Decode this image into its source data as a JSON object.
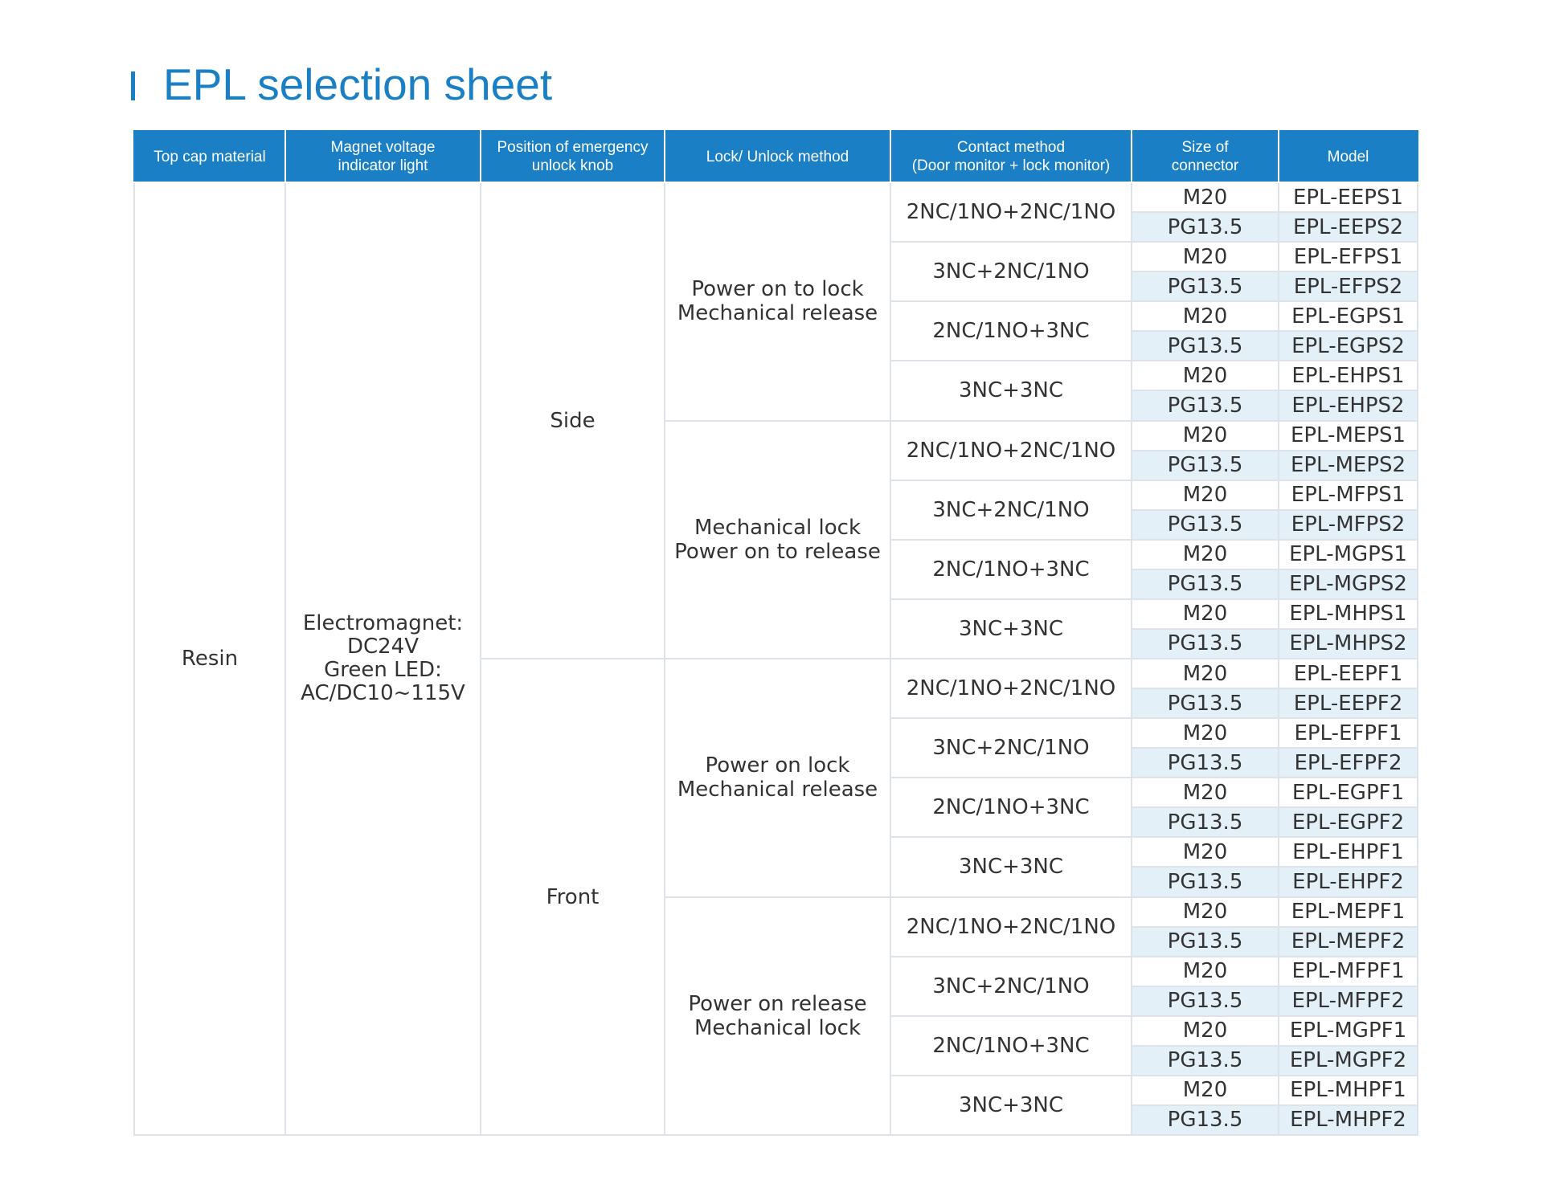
{
  "title": "EPL selection sheet",
  "colors": {
    "accent": "#1a7fc4",
    "alt_row": "#e4f0f8",
    "grid": "#dde3e8"
  },
  "headers": {
    "top_cap": "Top cap material",
    "magnet_voltage": [
      "Magnet voltage",
      "indicator light"
    ],
    "knob_position": [
      "Position of emergency",
      "unlock knob"
    ],
    "lock_method": "Lock/ Unlock method",
    "contact_method": [
      "Contact method",
      "(Door monitor + lock monitor)"
    ],
    "connector_size": [
      "Size of",
      "connector"
    ],
    "model": "Model"
  },
  "top_cap_material": "Resin",
  "magnet_voltage": [
    "Electromagnet:",
    "DC24V",
    "Green LED:",
    "AC/DC10~115V"
  ],
  "knob_positions": [
    "Side",
    "Front"
  ],
  "lock_methods": [
    [
      "Power on to lock",
      "Mechanical release"
    ],
    [
      "Mechanical lock",
      "Power on to release"
    ],
    [
      "Power on lock",
      "Mechanical release"
    ],
    [
      "Power on release",
      "Mechanical lock"
    ]
  ],
  "contact_methods": [
    "2NC/1NO+2NC/1NO",
    "3NC+2NC/1NO",
    "2NC/1NO+3NC",
    "3NC+3NC",
    "2NC/1NO+2NC/1NO",
    "3NC+2NC/1NO",
    "2NC/1NO+3NC",
    "3NC+3NC",
    "2NC/1NO+2NC/1NO",
    "3NC+2NC/1NO",
    "2NC/1NO+3NC",
    "3NC+3NC",
    "2NC/1NO+2NC/1NO",
    "3NC+2NC/1NO",
    "2NC/1NO+3NC",
    "3NC+3NC"
  ],
  "rows": [
    {
      "size": "M20",
      "model": "EPL-EEPS1"
    },
    {
      "size": "PG13.5",
      "model": "EPL-EEPS2"
    },
    {
      "size": "M20",
      "model": "EPL-EFPS1"
    },
    {
      "size": "PG13.5",
      "model": "EPL-EFPS2"
    },
    {
      "size": "M20",
      "model": "EPL-EGPS1"
    },
    {
      "size": "PG13.5",
      "model": "EPL-EGPS2"
    },
    {
      "size": "M20",
      "model": "EPL-EHPS1"
    },
    {
      "size": "PG13.5",
      "model": "EPL-EHPS2"
    },
    {
      "size": "M20",
      "model": "EPL-MEPS1"
    },
    {
      "size": "PG13.5",
      "model": "EPL-MEPS2"
    },
    {
      "size": "M20",
      "model": "EPL-MFPS1"
    },
    {
      "size": "PG13.5",
      "model": "EPL-MFPS2"
    },
    {
      "size": "M20",
      "model": "EPL-MGPS1"
    },
    {
      "size": "PG13.5",
      "model": "EPL-MGPS2"
    },
    {
      "size": "M20",
      "model": "EPL-MHPS1"
    },
    {
      "size": "PG13.5",
      "model": "EPL-MHPS2"
    },
    {
      "size": "M20",
      "model": "EPL-EEPF1"
    },
    {
      "size": "PG13.5",
      "model": "EPL-EEPF2"
    },
    {
      "size": "M20",
      "model": "EPL-EFPF1"
    },
    {
      "size": "PG13.5",
      "model": "EPL-EFPF2"
    },
    {
      "size": "M20",
      "model": "EPL-EGPF1"
    },
    {
      "size": "PG13.5",
      "model": "EPL-EGPF2"
    },
    {
      "size": "M20",
      "model": "EPL-EHPF1"
    },
    {
      "size": "PG13.5",
      "model": "EPL-EHPF2"
    },
    {
      "size": "M20",
      "model": "EPL-MEPF1"
    },
    {
      "size": "PG13.5",
      "model": "EPL-MEPF2"
    },
    {
      "size": "M20",
      "model": "EPL-MFPF1"
    },
    {
      "size": "PG13.5",
      "model": "EPL-MFPF2"
    },
    {
      "size": "M20",
      "model": "EPL-MGPF1"
    },
    {
      "size": "PG13.5",
      "model": "EPL-MGPF2"
    },
    {
      "size": "M20",
      "model": "EPL-MHPF1"
    },
    {
      "size": "PG13.5",
      "model": "EPL-MHPF2"
    }
  ]
}
